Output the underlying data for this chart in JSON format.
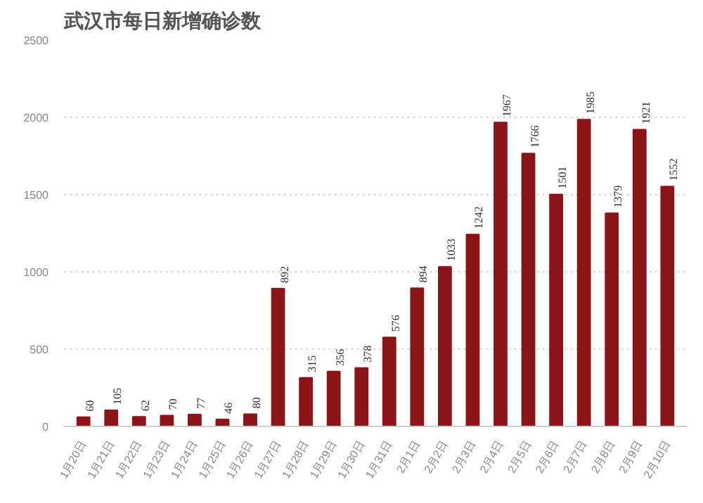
{
  "chart_data": {
    "type": "bar",
    "title": "武汉市每日新增确诊数",
    "categories": [
      "1月20日",
      "1月21日",
      "1月22日",
      "1月23日",
      "1月24日",
      "1月25日",
      "1月26日",
      "1月27日",
      "1月28日",
      "1月29日",
      "1月30日",
      "1月31日",
      "2月1日",
      "2月2日",
      "2月3日",
      "2月4日",
      "2月5日",
      "2月6日",
      "2月7日",
      "2月8日",
      "2月9日",
      "2月10日"
    ],
    "values": [
      60,
      105,
      62,
      70,
      77,
      46,
      80,
      892,
      315,
      356,
      378,
      576,
      894,
      1033,
      1242,
      1967,
      1766,
      1501,
      1985,
      1379,
      1921,
      1552
    ],
    "color": "#8c1519",
    "ylim": [
      0,
      2500
    ],
    "yticks": [
      0,
      500,
      1000,
      1500,
      2000,
      2500
    ],
    "grid": "y",
    "data_labels": true
  }
}
